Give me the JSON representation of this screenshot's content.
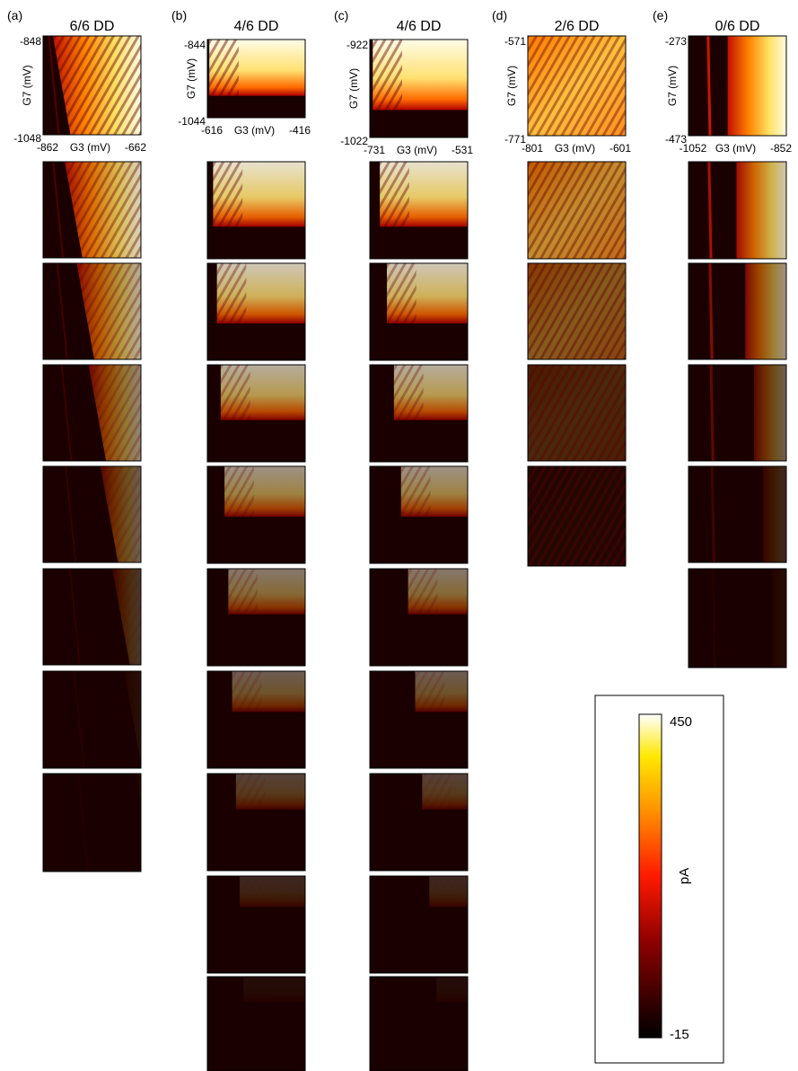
{
  "panels": [
    {
      "label": "(a)",
      "title": "6/6 DD",
      "y_label": "G7 (mV)",
      "y_ticks": [
        -848,
        -1048
      ],
      "x_label": "G3 (mV)",
      "x_ticks": [
        -862,
        -662
      ]
    },
    {
      "label": "(b)",
      "title": "4/6 DD",
      "y_label": "G7 (mV)",
      "y_ticks": [
        -844,
        -1044
      ],
      "x_label": "G3 (mV)",
      "x_ticks": [
        -616,
        -416
      ]
    },
    {
      "label": "(c)",
      "title": "4/6 DD",
      "y_label": "G7 (mV)",
      "y_ticks": [
        -922,
        -1022
      ],
      "x_label": "G3 (mV)",
      "x_ticks": [
        -731,
        -531
      ]
    },
    {
      "label": "(d)",
      "title": "2/6 DD",
      "y_label": "G7 (mV)",
      "y_ticks": [
        -571,
        -771
      ],
      "x_label": "G3 (mV)",
      "x_ticks": [
        -801,
        -601
      ]
    },
    {
      "label": "(e)",
      "title": "0/6 DD",
      "y_label": "G7 (mV)",
      "y_ticks": [
        -273,
        -473
      ],
      "x_label": "G3 (mV)",
      "x_ticks": [
        -1052,
        -852
      ]
    }
  ],
  "colorbar": {
    "label": "pA",
    "ticks": [
      450,
      -15
    ]
  }
}
